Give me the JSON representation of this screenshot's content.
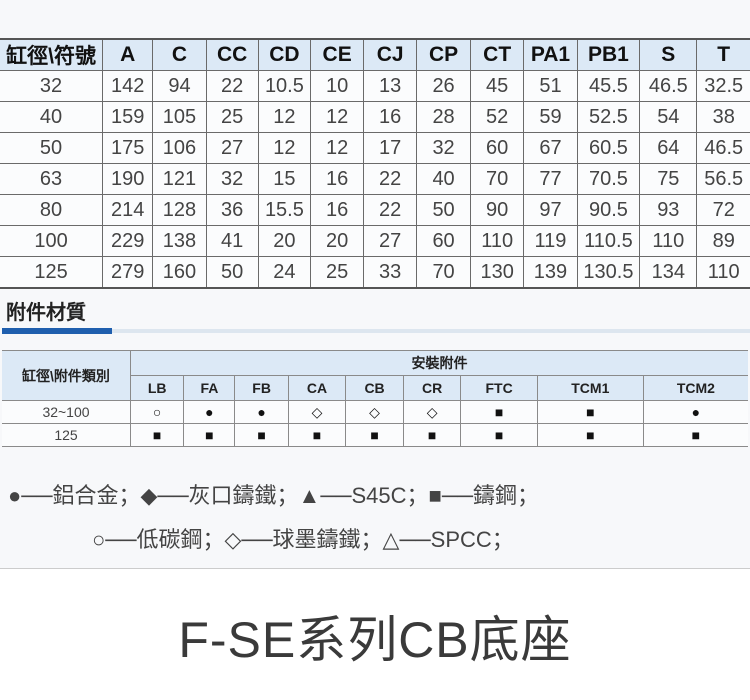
{
  "dimension_table": {
    "headers": [
      "缸徑\\符號",
      "A",
      "C",
      "CC",
      "CD",
      "CE",
      "CJ",
      "CP",
      "CT",
      "PA1",
      "PB1",
      "S",
      "T"
    ],
    "rows": [
      [
        "32",
        "142",
        "94",
        "22",
        "10.5",
        "10",
        "13",
        "26",
        "45",
        "51",
        "45.5",
        "46.5",
        "32.5"
      ],
      [
        "40",
        "159",
        "105",
        "25",
        "12",
        "12",
        "16",
        "28",
        "52",
        "59",
        "52.5",
        "54",
        "38"
      ],
      [
        "50",
        "175",
        "106",
        "27",
        "12",
        "12",
        "17",
        "32",
        "60",
        "67",
        "60.5",
        "64",
        "46.5"
      ],
      [
        "63",
        "190",
        "121",
        "32",
        "15",
        "16",
        "22",
        "40",
        "70",
        "77",
        "70.5",
        "75",
        "56.5"
      ],
      [
        "80",
        "214",
        "128",
        "36",
        "15.5",
        "16",
        "22",
        "50",
        "90",
        "97",
        "90.5",
        "93",
        "72"
      ],
      [
        "100",
        "229",
        "138",
        "41",
        "20",
        "20",
        "27",
        "60",
        "110",
        "119",
        "110.5",
        "110",
        "89"
      ],
      [
        "125",
        "279",
        "160",
        "50",
        "24",
        "25",
        "33",
        "70",
        "130",
        "139",
        "130.5",
        "134",
        "110"
      ]
    ]
  },
  "section_title": "附件材質",
  "accessory_table": {
    "row_header": "缸徑\\附件類別",
    "group_header": "安裝附件",
    "columns": [
      "LB",
      "FA",
      "FB",
      "CA",
      "CB",
      "CR",
      "FTC",
      "TCM1",
      "TCM2"
    ],
    "rows": [
      {
        "bore": "32~100",
        "marks": [
          "○",
          "●",
          "●",
          "◇",
          "◇",
          "◇",
          "■",
          "■",
          "●"
        ]
      },
      {
        "bore": "125",
        "marks": [
          "■",
          "■",
          "■",
          "■",
          "■",
          "■",
          "■",
          "■",
          "■"
        ]
      }
    ]
  },
  "legend": {
    "line1": "●──鋁合金；◆──灰口鑄鐵；▲──S45C；■──鑄鋼；",
    "line2": "○──低碳鋼；◇──球墨鑄鐵；△──SPCC；"
  },
  "title": "F-SE系列CB底座",
  "colors": {
    "header_bg": "#dce9f6",
    "accent": "#1f5fae"
  }
}
